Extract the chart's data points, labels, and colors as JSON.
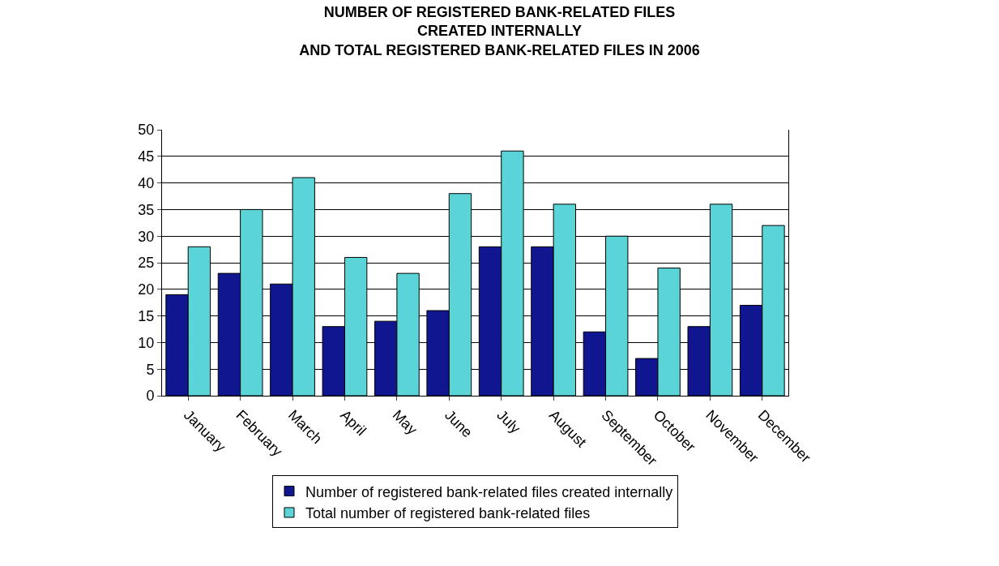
{
  "chart_data": {
    "type": "bar",
    "title": "NUMBER OF REGISTERED BANK-RELATED FILES\nCREATED INTERNALLY\nAND TOTAL REGISTERED BANK-RELATED FILES IN 2006",
    "categories": [
      "January",
      "February",
      "March",
      "April",
      "May",
      "June",
      "July",
      "August",
      "September",
      "October",
      "November",
      "December"
    ],
    "series": [
      {
        "name": "Number of registered bank-related files created internally",
        "color": "#10168f",
        "values": [
          19,
          23,
          21,
          13,
          14,
          16,
          28,
          28,
          12,
          7,
          13,
          17
        ]
      },
      {
        "name": "Total number of registered bank-related files",
        "color": "#5ad4d6",
        "values": [
          28,
          35,
          41,
          26,
          23,
          38,
          46,
          36,
          30,
          24,
          36,
          32
        ]
      }
    ],
    "ylim": [
      0,
      50
    ],
    "yticks": [
      0,
      5,
      10,
      15,
      20,
      25,
      30,
      35,
      40,
      45,
      50
    ],
    "grid": "y",
    "legend": "bottom"
  }
}
